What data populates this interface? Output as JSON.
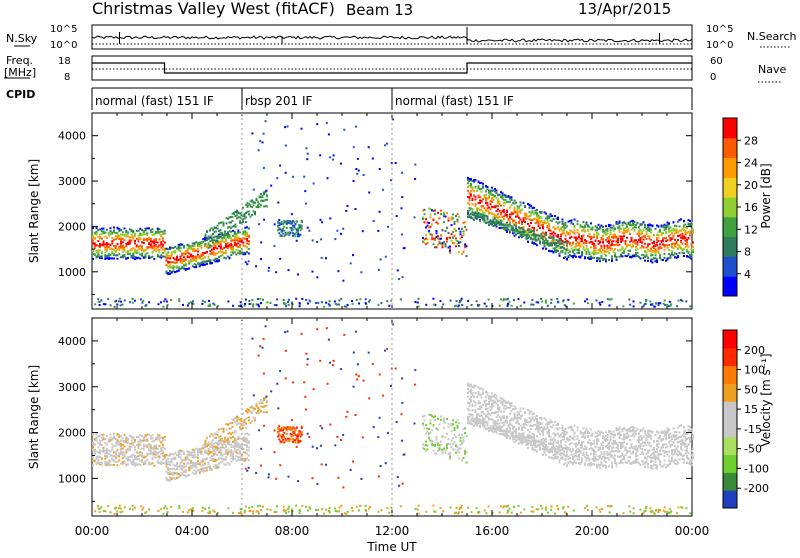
{
  "header": {
    "station": "Christmas Valley West (fitACF)",
    "beam": "Beam 13",
    "date": "13/Apr/2015"
  },
  "top_panels": {
    "nsky_label": "N.Sky",
    "nsky_ticks": [
      "10^5",
      "10^0"
    ],
    "nsearch_label": "N.Search",
    "nsearch_ticks": [
      "10^5",
      "10^0"
    ],
    "freq_label_1": "Freq.",
    "freq_label_2": "[MHz]",
    "freq_ticks": [
      "18",
      "8"
    ],
    "nave_label": "Nave",
    "nave_ticks": [
      "60",
      "0"
    ],
    "cpid_label": "CPID",
    "cpid_segments": [
      {
        "label": "normal (fast) 151 IF",
        "start": 0,
        "end": 6
      },
      {
        "label": "rbsp 201 IF",
        "start": 6,
        "end": 12
      },
      {
        "label": "normal (fast) 151 IF",
        "start": 12,
        "end": 24
      }
    ]
  },
  "colors": {
    "power_scale": [
      "#0000ff",
      "#1f4fcf",
      "#2e7a5e",
      "#3fa13f",
      "#8fcf2f",
      "#f0d020",
      "#ff9a00",
      "#ff5a00",
      "#ff0000"
    ],
    "velocity_scale": [
      "#1f3fbf",
      "#3a8a3a",
      "#6fcf2f",
      "#a8e060",
      "#c8c8c8",
      "#c8c8c8",
      "#f0a020",
      "#ff7a00",
      "#ff2a00",
      "#ff0000"
    ]
  },
  "chart_data": [
    {
      "type": "heatmap",
      "xlabel": "Time UT",
      "ylabel": "Slant Range [km]",
      "x_ticks": [
        "00:00",
        "04:00",
        "08:00",
        "12:00",
        "16:00",
        "20:00",
        "00:00"
      ],
      "xlim_hours": [
        0,
        24
      ],
      "y_ticks": [
        1000,
        2000,
        3000,
        4000
      ],
      "ylim_km": [
        180,
        4500
      ],
      "colorbar_label": "Power [dB]",
      "colorbar_ticks": [
        "28",
        "24",
        "20",
        "16",
        "12",
        "8",
        "4"
      ],
      "colorbar_range": [
        0,
        30
      ]
    },
    {
      "type": "heatmap",
      "xlabel": "Time UT",
      "ylabel": "Slant Range [km]",
      "x_ticks": [
        "00:00",
        "04:00",
        "08:00",
        "12:00",
        "16:00",
        "20:00",
        "00:00"
      ],
      "xlim_hours": [
        0,
        24
      ],
      "y_ticks": [
        1000,
        2000,
        3000,
        4000
      ],
      "ylim_km": [
        180,
        4500
      ],
      "colorbar_label": "Velocity [m s⁻¹]",
      "colorbar_ticks": [
        "200",
        "100",
        "50",
        "15",
        "-15",
        "-50",
        "-100",
        "-200"
      ],
      "colorbar_range": [
        -250,
        250
      ]
    }
  ]
}
